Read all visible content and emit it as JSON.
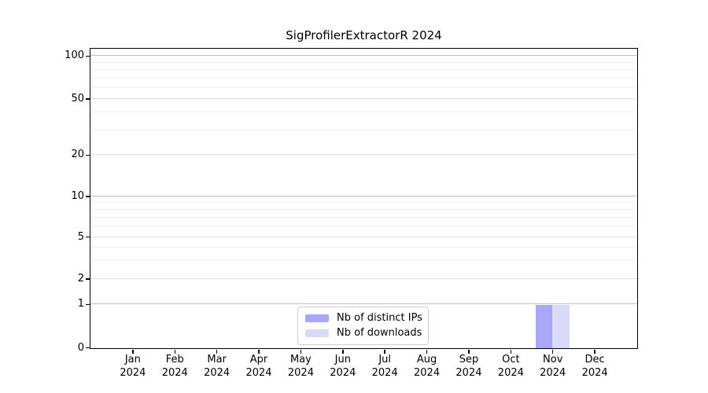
{
  "figure": {
    "title": "SigProfilerExtractorR 2024"
  },
  "chart_data": {
    "type": "bar",
    "title": "SigProfilerExtractorR 2024",
    "x": {
      "months": [
        "Jan",
        "Feb",
        "Mar",
        "Apr",
        "May",
        "Jun",
        "Jul",
        "Aug",
        "Sep",
        "Oct",
        "Nov",
        "Dec"
      ],
      "year": "2024"
    },
    "y_axis": {
      "scale": "log-like with 0 baseline",
      "major_ticks": [
        100,
        50,
        20,
        10,
        5,
        2,
        1,
        0
      ],
      "minor_gridlines": [
        3,
        4,
        6,
        7,
        8,
        9,
        30,
        40,
        60,
        70,
        80,
        90
      ],
      "range": [
        0,
        100
      ]
    },
    "series": [
      {
        "name": "Nb of distinct IPs",
        "color": "#a8a8f7",
        "values": [
          0,
          0,
          0,
          0,
          0,
          0,
          0,
          0,
          0,
          0,
          1,
          0
        ]
      },
      {
        "name": "Nb of downloads",
        "color": "#d9d9f8",
        "values": [
          0,
          0,
          0,
          0,
          0,
          0,
          0,
          0,
          0,
          0,
          1,
          0
        ]
      }
    ],
    "legend": {
      "position": "lower center",
      "entries": [
        "Nb of distinct IPs",
        "Nb of downloads"
      ]
    },
    "grid": {
      "major": true,
      "minor": true
    }
  }
}
